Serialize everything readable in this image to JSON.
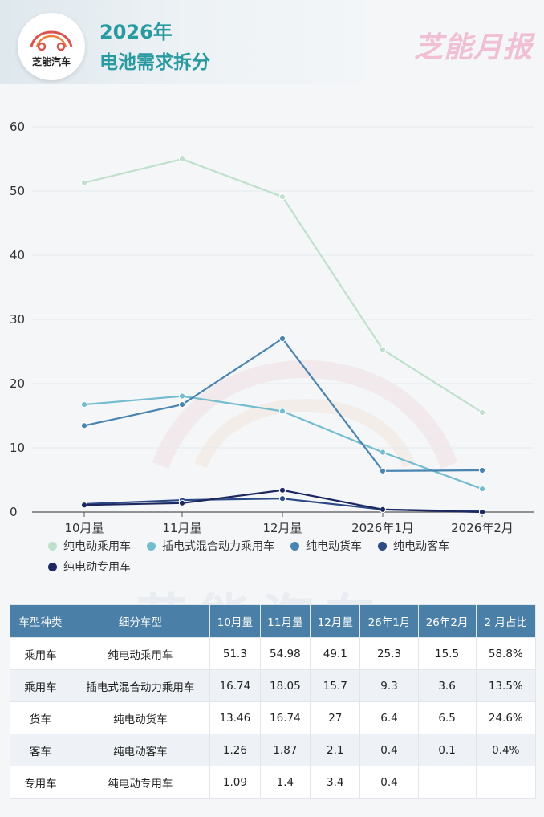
{
  "header": {
    "logo_text": "芝能汽车",
    "title_line1": "2026年",
    "title_line2": "电池需求拆分",
    "brand": "芝能月报"
  },
  "watermark": "芝能汽车",
  "colors": {
    "series": [
      "#bfe0cc",
      "#74bccf",
      "#4a84b0",
      "#2c4a86",
      "#1e2860"
    ],
    "header_bg": "#4a7fa7"
  },
  "chart_data": {
    "type": "line",
    "categories": [
      "10月量",
      "11月量",
      "12月量",
      "2026年1月",
      "2026年2月"
    ],
    "ylim": [
      0,
      60
    ],
    "yticks": [
      0,
      10,
      20,
      30,
      40,
      50,
      60
    ],
    "grid": true,
    "legend_position": "bottom",
    "series": [
      {
        "name": "纯电动乘用车",
        "values": [
          51.3,
          54.98,
          49.1,
          25.3,
          15.5
        ]
      },
      {
        "name": "插电式混合动力乘用车",
        "values": [
          16.74,
          18.05,
          15.7,
          9.3,
          3.6
        ]
      },
      {
        "name": "纯电动货车",
        "values": [
          13.46,
          16.74,
          27,
          6.4,
          6.5
        ]
      },
      {
        "name": "纯电动客车",
        "values": [
          1.26,
          1.87,
          2.1,
          0.4,
          0.1
        ]
      },
      {
        "name": "纯电动专用车",
        "values": [
          1.09,
          1.4,
          3.4,
          0.4,
          0
        ]
      }
    ]
  },
  "table": {
    "headers": [
      "车型种类",
      "细分车型",
      "10月量",
      "11月量",
      "12月量",
      "26年1月",
      "26年2月",
      "2 月占比"
    ],
    "rows": [
      [
        "乘用车",
        "纯电动乘用车",
        "51.3",
        "54.98",
        "49.1",
        "25.3",
        "15.5",
        "58.8%"
      ],
      [
        "乘用车",
        "插电式混合动力乘用车",
        "16.74",
        "18.05",
        "15.7",
        "9.3",
        "3.6",
        "13.5%"
      ],
      [
        "货车",
        "纯电动货车",
        "13.46",
        "16.74",
        "27",
        "6.4",
        "6.5",
        "24.6%"
      ],
      [
        "客车",
        "纯电动客车",
        "1.26",
        "1.87",
        "2.1",
        "0.4",
        "0.1",
        "0.4%"
      ],
      [
        "专用车",
        "纯电动专用车",
        "1.09",
        "1.4",
        "3.4",
        "0.4",
        "",
        ""
      ]
    ]
  }
}
